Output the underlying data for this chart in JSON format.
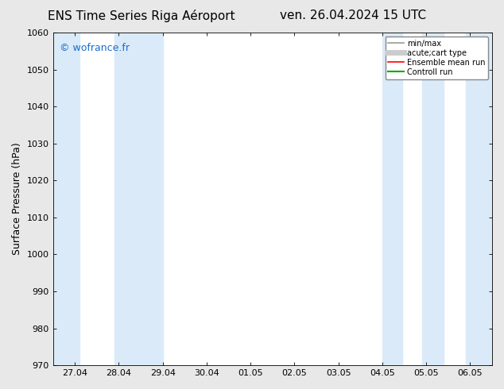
{
  "title_left": "ENS Time Series Riga Aéroport",
  "title_right": "ven. 26.04.2024 15 UTC",
  "ylabel": "Surface Pressure (hPa)",
  "ylim": [
    970,
    1060
  ],
  "yticks": [
    970,
    980,
    990,
    1000,
    1010,
    1020,
    1030,
    1040,
    1050,
    1060
  ],
  "x_labels": [
    "27.04",
    "28.04",
    "29.04",
    "30.04",
    "01.05",
    "02.05",
    "03.05",
    "04.05",
    "05.05",
    "06.05"
  ],
  "watermark": "© wofrance.fr",
  "watermark_color": "#1a6dcc",
  "shaded_bands_xdata": [
    [
      27.04,
      27.5
    ],
    [
      28.5,
      29.2
    ],
    [
      104.05,
      104.6
    ],
    [
      105.0,
      105.5
    ],
    [
      106.0,
      106.05
    ]
  ],
  "band_color": "#daeaf8",
  "bg_color": "#e8e8e8",
  "plot_bg_color": "#ffffff",
  "legend_items": [
    {
      "label": "min/max",
      "color": "#999999",
      "lw": 1.2,
      "ls": "-"
    },
    {
      "label": "acute;cart type",
      "color": "#cccccc",
      "lw": 5,
      "ls": "-"
    },
    {
      "label": "Ensemble mean run",
      "color": "#ff0000",
      "lw": 1.2,
      "ls": "-"
    },
    {
      "label": "Controll run",
      "color": "#00aa00",
      "lw": 1.5,
      "ls": "-"
    }
  ],
  "title_fontsize": 11,
  "tick_fontsize": 8,
  "label_fontsize": 9
}
